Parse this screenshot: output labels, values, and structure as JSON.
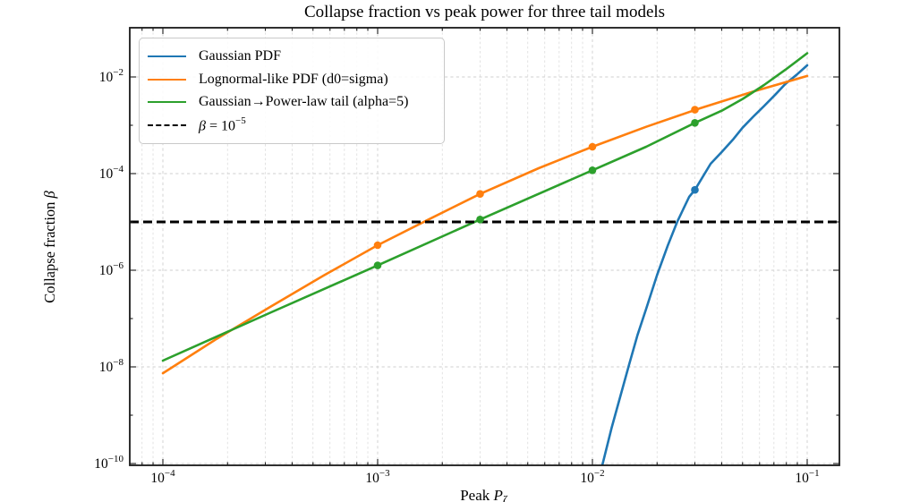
{
  "title": "Collapse fraction vs peak power for three tail models",
  "axes": {
    "ylabel_prefix": "Collapse fraction ",
    "ylabel_symbol": "β",
    "xlabel_prefix": "Peak ",
    "xlabel_symbol": "P",
    "xlabel_sub": "ζ"
  },
  "legend": {
    "position": "upper-left",
    "items": [
      {
        "label": "Gaussian PDF",
        "color": "#1f77b4",
        "style": "solid"
      },
      {
        "label": "Lognormal-like PDF (d0=sigma)",
        "color": "#ff7f0e",
        "style": "solid"
      },
      {
        "label": "Gaussian→Power-law tail (alpha=5)",
        "color": "#2ca02c",
        "style": "solid"
      },
      {
        "label_math": {
          "italic": "β",
          "mid": " = 10",
          "sup": "−5"
        },
        "color": "#000000",
        "style": "dashed"
      }
    ]
  },
  "chart_data": {
    "type": "line",
    "x_scale": "log",
    "y_scale": "log",
    "title": "Collapse fraction vs peak power for three tail models",
    "xlabel": "Peak P_ζ",
    "ylabel": "Collapse fraction β",
    "xlim": [
      7e-05,
      0.143
    ],
    "ylim": [
      1e-10,
      0.11
    ],
    "grid": true,
    "tick_base": "10",
    "x_tick_logs": [
      -4,
      -3,
      -2,
      -1
    ],
    "x_tick_exponents": [
      "−4",
      "−3",
      "−2",
      "−1"
    ],
    "y_tick_logs": [
      -2,
      -4,
      -6,
      -8,
      -10
    ],
    "y_tick_exponents": [
      "−2",
      "−4",
      "−6",
      "−8",
      "−10"
    ],
    "y_minor_tick_logs": [
      -3,
      -5,
      -7,
      -9
    ],
    "threshold_line": {
      "value": 1e-05,
      "color": "#000000",
      "style": "dashed",
      "label": "β = 10−5"
    },
    "grid_color": "#cfcfcf",
    "spine_color": "#1a1a1a",
    "series": [
      {
        "name": "Gaussian PDF",
        "color": "#1f77b4",
        "points": [
          [
            0.0111,
            9e-11
          ],
          [
            0.0123,
            5.6e-10
          ],
          [
            0.0135,
            2.5e-09
          ],
          [
            0.0148,
            1.1e-08
          ],
          [
            0.0162,
            4.5e-08
          ],
          [
            0.0178,
            1.6e-07
          ],
          [
            0.02,
            7.9e-07
          ],
          [
            0.0224,
            3.2e-06
          ],
          [
            0.0248,
            1e-05
          ],
          [
            0.0282,
            3.3e-05
          ],
          [
            0.03,
            4.6e-05
          ],
          [
            0.0355,
            0.00016
          ],
          [
            0.04,
            0.00028
          ],
          [
            0.045,
            0.0005
          ],
          [
            0.05,
            0.00089
          ],
          [
            0.056,
            0.0015
          ],
          [
            0.063,
            0.0025
          ],
          [
            0.071,
            0.0043
          ],
          [
            0.079,
            0.0071
          ],
          [
            0.089,
            0.011
          ],
          [
            0.1,
            0.0174
          ]
        ],
        "marker_points": [
          [
            0.03,
            4.6e-05
          ]
        ]
      },
      {
        "name": "Lognormal-like PDF (d0=sigma)",
        "color": "#ff7f0e",
        "points": [
          [
            0.0001,
            7.4e-09
          ],
          [
            0.000178,
            3.8e-08
          ],
          [
            0.000316,
            1.74e-07
          ],
          [
            0.000562,
            7.8e-07
          ],
          [
            0.001,
            3.3e-06
          ],
          [
            0.00178,
            1.2e-05
          ],
          [
            0.003,
            3.8e-05
          ],
          [
            0.00562,
            0.000129
          ],
          [
            0.01,
            0.00036
          ],
          [
            0.0178,
            0.00093
          ],
          [
            0.0316,
            0.00224
          ],
          [
            0.0562,
            0.005
          ],
          [
            0.1,
            0.0105
          ]
        ],
        "marker_points": [
          [
            0.001,
            3.3e-06
          ],
          [
            0.003,
            3.8e-05
          ],
          [
            0.01,
            0.00036
          ],
          [
            0.03,
            0.0021
          ]
        ]
      },
      {
        "name": "Gaussian→Power-law tail (alpha=5)",
        "color": "#2ca02c",
        "points": [
          [
            0.0001,
            1.35e-08
          ],
          [
            0.000316,
            1.32e-07
          ],
          [
            0.001,
            1.26e-06
          ],
          [
            0.003,
            1.12e-05
          ],
          [
            0.01,
            0.000117
          ],
          [
            0.0178,
            0.00036
          ],
          [
            0.03,
            0.00112
          ],
          [
            0.04,
            0.002
          ],
          [
            0.05,
            0.0035
          ],
          [
            0.063,
            0.0068
          ],
          [
            0.079,
            0.014
          ],
          [
            0.1,
            0.031
          ]
        ],
        "marker_points": [
          [
            0.001,
            1.26e-06
          ],
          [
            0.003,
            1.12e-05
          ],
          [
            0.01,
            0.000117
          ],
          [
            0.03,
            0.00112
          ]
        ]
      }
    ]
  }
}
